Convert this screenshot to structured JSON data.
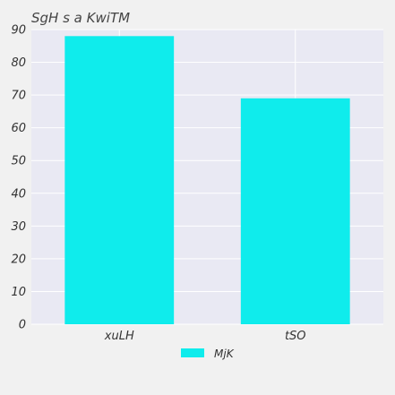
{
  "chart_data": {
    "type": "bar",
    "title": "SgH  s a KwiTM",
    "categories": [
      "xuLH",
      "tSO"
    ],
    "series": [
      {
        "name": "MjK",
        "values": [
          88,
          69
        ],
        "color": "#0fecec"
      }
    ],
    "xlabel": "",
    "ylabel": "",
    "ylim": [
      0,
      90
    ],
    "yticks": [
      0,
      10,
      20,
      30,
      40,
      50,
      60,
      70,
      80,
      90
    ],
    "grid": true,
    "legend_position": "bottom-center",
    "plot_background": "#e9e9f3",
    "grid_color": "#ffffff"
  }
}
